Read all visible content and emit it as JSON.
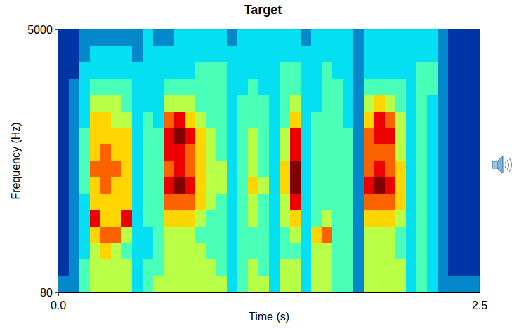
{
  "chart_data": {
    "type": "heatmap",
    "title": "Target",
    "x_label": "Time (s)",
    "y_label": "Frequency (Hz)",
    "xlim": [
      0,
      2.5
    ],
    "ylim": [
      80,
      5000
    ],
    "xticks": [
      {
        "value": 0,
        "label": "0.0"
      },
      {
        "value": 2.5,
        "label": "2.5"
      }
    ],
    "yticks": [
      80,
      5000
    ],
    "color": "Jet",
    "color_range": [
      0,
      9
    ],
    "x": [
      0.031,
      0.094,
      0.156,
      0.219,
      0.281,
      0.344,
      0.406,
      0.469,
      0.531,
      0.594,
      0.656,
      0.719,
      0.781,
      0.844,
      0.906,
      0.969,
      1.031,
      1.094,
      1.156,
      1.219,
      1.281,
      1.344,
      1.406,
      1.469,
      1.531,
      1.594,
      1.656,
      1.719,
      1.781,
      1.844,
      1.906,
      1.969,
      2.031,
      2.094,
      2.156,
      2.219,
      2.281,
      2.344,
      2.406,
      2.469
    ],
    "y": [
      234,
      541,
      849,
      1156,
      1464,
      1771,
      2079,
      2386,
      2694,
      3001,
      3309,
      3616,
      3924,
      4231,
      4539,
      4846
    ],
    "cells": [
      [
        2,
        1,
        1,
        1,
        1,
        1,
        1,
        1,
        1,
        1,
        1,
        1,
        1,
        1,
        1,
        1
      ],
      [
        2,
        2,
        2,
        2,
        2,
        2,
        2,
        2,
        2,
        2,
        2,
        2,
        2,
        1,
        1,
        1
      ],
      [
        4,
        4,
        3,
        3,
        3,
        3,
        4,
        4,
        4,
        4,
        3,
        3,
        3,
        3,
        2,
        2
      ],
      [
        5,
        5,
        5,
        6,
        8,
        6,
        6,
        7,
        6,
        6,
        6,
        5,
        4,
        3,
        3,
        2
      ],
      [
        5,
        5,
        6,
        7,
        6,
        6,
        7,
        7,
        7,
        6,
        6,
        5,
        4,
        3,
        3,
        2
      ],
      [
        5,
        5,
        5,
        7,
        6,
        6,
        6,
        7,
        6,
        6,
        5,
        5,
        4,
        3,
        3,
        2
      ],
      [
        5,
        5,
        4,
        5,
        8,
        6,
        6,
        6,
        6,
        6,
        5,
        4,
        4,
        3,
        3,
        2
      ],
      [
        3,
        3,
        3,
        3,
        3,
        3,
        3,
        3,
        3,
        3,
        3,
        3,
        3,
        3,
        2,
        2
      ],
      [
        4,
        4,
        3,
        3,
        4,
        4,
        4,
        4,
        4,
        4,
        4,
        3,
        3,
        3,
        3,
        3
      ],
      [
        5,
        4,
        4,
        4,
        4,
        4,
        4,
        4,
        4,
        4,
        3,
        3,
        3,
        3,
        3,
        2
      ],
      [
        5,
        5,
        5,
        5,
        6,
        7,
        8,
        7,
        8,
        8,
        7,
        5,
        4,
        3,
        3,
        2
      ],
      [
        5,
        5,
        5,
        5,
        6,
        7,
        9,
        8,
        8,
        9,
        8,
        5,
        4,
        3,
        3,
        3
      ],
      [
        5,
        5,
        5,
        5,
        6,
        7,
        8,
        7,
        7,
        8,
        6,
        5,
        4,
        3,
        3,
        3
      ],
      [
        5,
        5,
        5,
        4,
        5,
        6,
        6,
        6,
        6,
        6,
        5,
        4,
        4,
        4,
        3,
        3
      ],
      [
        5,
        5,
        4,
        4,
        4,
        5,
        5,
        5,
        5,
        5,
        4,
        4,
        4,
        4,
        3,
        3
      ],
      [
        5,
        4,
        4,
        4,
        4,
        4,
        5,
        5,
        4,
        4,
        4,
        4,
        4,
        4,
        3,
        3
      ],
      [
        3,
        3,
        3,
        3,
        3,
        3,
        3,
        3,
        3,
        3,
        3,
        3,
        3,
        3,
        3,
        2
      ],
      [
        4,
        4,
        4,
        4,
        4,
        4,
        4,
        4,
        4,
        4,
        4,
        4,
        3,
        3,
        3,
        3
      ],
      [
        5,
        5,
        4,
        4,
        5,
        5,
        6,
        5,
        5,
        5,
        4,
        4,
        4,
        3,
        3,
        3
      ],
      [
        5,
        4,
        4,
        4,
        4,
        4,
        5,
        4,
        4,
        4,
        4,
        4,
        3,
        3,
        3,
        3
      ],
      [
        3,
        3,
        3,
        3,
        3,
        3,
        3,
        3,
        3,
        3,
        3,
        3,
        3,
        3,
        3,
        3
      ],
      [
        5,
        5,
        4,
        4,
        5,
        5,
        6,
        6,
        5,
        5,
        4,
        4,
        4,
        4,
        3,
        3
      ],
      [
        5,
        5,
        4,
        5,
        6,
        8,
        9,
        9,
        8,
        8,
        6,
        5,
        4,
        4,
        3,
        3
      ],
      [
        3,
        3,
        3,
        3,
        3,
        3,
        3,
        3,
        3,
        3,
        3,
        3,
        3,
        3,
        3,
        2
      ],
      [
        5,
        5,
        5,
        6,
        4,
        4,
        4,
        4,
        4,
        4,
        4,
        3,
        3,
        3,
        3,
        3
      ],
      [
        5,
        5,
        5,
        7,
        5,
        4,
        4,
        4,
        4,
        4,
        4,
        4,
        4,
        4,
        3,
        3
      ],
      [
        4,
        4,
        4,
        4,
        4,
        4,
        4,
        4,
        4,
        4,
        4,
        4,
        4,
        3,
        3,
        3
      ],
      [
        4,
        4,
        4,
        4,
        4,
        4,
        4,
        4,
        4,
        4,
        3,
        3,
        3,
        3,
        3,
        3
      ],
      [
        2,
        2,
        2,
        2,
        2,
        2,
        2,
        2,
        2,
        2,
        2,
        2,
        2,
        2,
        2,
        2
      ],
      [
        5,
        5,
        5,
        5,
        6,
        7,
        8,
        7,
        7,
        7,
        6,
        5,
        4,
        3,
        3,
        3
      ],
      [
        5,
        5,
        5,
        5,
        6,
        7,
        9,
        8,
        7,
        8,
        8,
        6,
        4,
        3,
        3,
        3
      ],
      [
        5,
        5,
        5,
        5,
        6,
        7,
        8,
        7,
        7,
        8,
        7,
        5,
        4,
        3,
        3,
        3
      ],
      [
        5,
        5,
        4,
        4,
        5,
        6,
        6,
        6,
        5,
        5,
        5,
        4,
        4,
        3,
        3,
        3
      ],
      [
        3,
        3,
        3,
        3,
        3,
        3,
        3,
        3,
        3,
        3,
        3,
        3,
        3,
        3,
        3,
        3
      ],
      [
        4,
        4,
        4,
        4,
        4,
        4,
        4,
        4,
        4,
        4,
        4,
        4,
        4,
        4,
        3,
        3
      ],
      [
        3,
        3,
        3,
        3,
        3,
        3,
        3,
        3,
        3,
        3,
        3,
        3,
        4,
        4,
        3,
        3
      ],
      [
        2,
        2,
        2,
        2,
        2,
        2,
        2,
        2,
        2,
        2,
        2,
        2,
        2,
        2,
        2,
        2
      ],
      [
        2,
        1,
        1,
        1,
        1,
        1,
        1,
        1,
        1,
        1,
        1,
        1,
        1,
        1,
        1,
        1
      ],
      [
        2,
        1,
        1,
        1,
        1,
        1,
        1,
        1,
        1,
        1,
        1,
        1,
        1,
        1,
        1,
        1
      ],
      [
        2,
        1,
        1,
        1,
        1,
        1,
        1,
        1,
        1,
        1,
        1,
        1,
        1,
        1,
        1,
        1
      ]
    ]
  }
}
